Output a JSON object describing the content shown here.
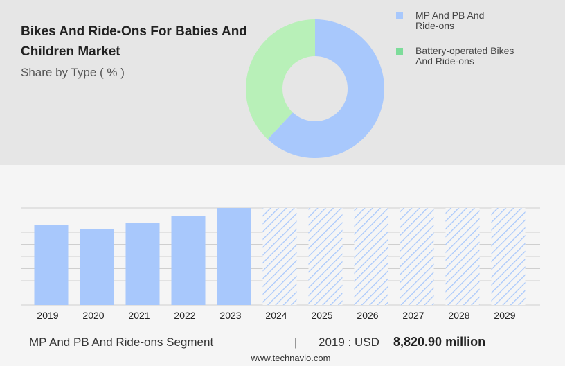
{
  "chart_data": [
    {
      "type": "donut",
      "title": "Bikes And Ride-Ons For Babies And Children Market",
      "subtitle": "Share by Type ( % )",
      "categories": [
        "MP And PB And Ride-ons",
        "Battery-operated Bikes And Ride-ons"
      ],
      "values": [
        62,
        38
      ],
      "colors": [
        "#a8c8fc",
        "#b8f0b8"
      ],
      "legend_colors": [
        "#a8c8fc",
        "#7ddc9a"
      ]
    },
    {
      "type": "bar",
      "categories": [
        "2019",
        "2020",
        "2021",
        "2022",
        "2023",
        "2024",
        "2025",
        "2026",
        "2027",
        "2028",
        "2029"
      ],
      "values": [
        8820.9,
        8437,
        9051,
        9818,
        10739,
        null,
        null,
        null,
        null,
        null,
        null
      ],
      "value_labels": [
        "8,820.90 million",
        null,
        null,
        null,
        null,
        null,
        null,
        null,
        null,
        null,
        null
      ],
      "color": "#a8c8fc",
      "ylim": [
        0,
        10739
      ],
      "grid": true,
      "segment_label": "MP And PB And Ride-ons Segment",
      "year_label": "2019 : USD"
    }
  ],
  "footer": {
    "website": "www.technavio.com"
  }
}
